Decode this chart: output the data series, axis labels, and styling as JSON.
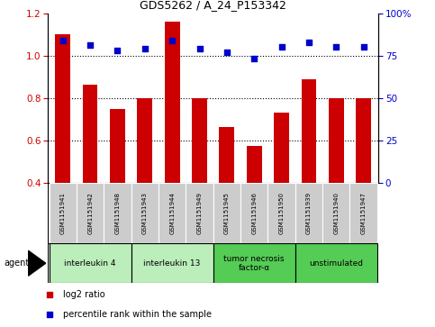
{
  "title": "GDS5262 / A_24_P153342",
  "samples": [
    "GSM1151941",
    "GSM1151942",
    "GSM1151948",
    "GSM1151943",
    "GSM1151944",
    "GSM1151949",
    "GSM1151945",
    "GSM1151946",
    "GSM1151950",
    "GSM1151939",
    "GSM1151940",
    "GSM1151947"
  ],
  "log2_ratio": [
    1.1,
    0.865,
    0.75,
    0.8,
    1.16,
    0.8,
    0.665,
    0.575,
    0.73,
    0.89,
    0.8,
    0.8
  ],
  "percentile_rank": [
    84,
    81,
    78,
    79,
    84,
    79,
    77,
    73,
    80,
    83,
    80,
    80
  ],
  "bar_color": "#cc0000",
  "dot_color": "#0000cc",
  "ylim_left": [
    0.4,
    1.2
  ],
  "ylim_right": [
    0,
    100
  ],
  "yticks_left": [
    0.4,
    0.6,
    0.8,
    1.0,
    1.2
  ],
  "yticks_right": [
    0,
    25,
    50,
    75,
    100
  ],
  "dotted_lines": [
    0.6,
    0.8,
    1.0
  ],
  "groups": [
    {
      "label": "interleukin 4",
      "start": 0,
      "end": 3,
      "color": "#bbeebb"
    },
    {
      "label": "interleukin 13",
      "start": 3,
      "end": 6,
      "color": "#bbeebb"
    },
    {
      "label": "tumor necrosis\nfactor-α",
      "start": 6,
      "end": 9,
      "color": "#55cc55"
    },
    {
      "label": "unstimulated",
      "start": 9,
      "end": 12,
      "color": "#55cc55"
    }
  ],
  "agent_label": "agent",
  "legend_log2": "log2 ratio",
  "legend_pct": "percentile rank within the sample",
  "bar_width": 0.55,
  "base_value": 0.4,
  "sample_box_color": "#cccccc",
  "n_samples": 12
}
